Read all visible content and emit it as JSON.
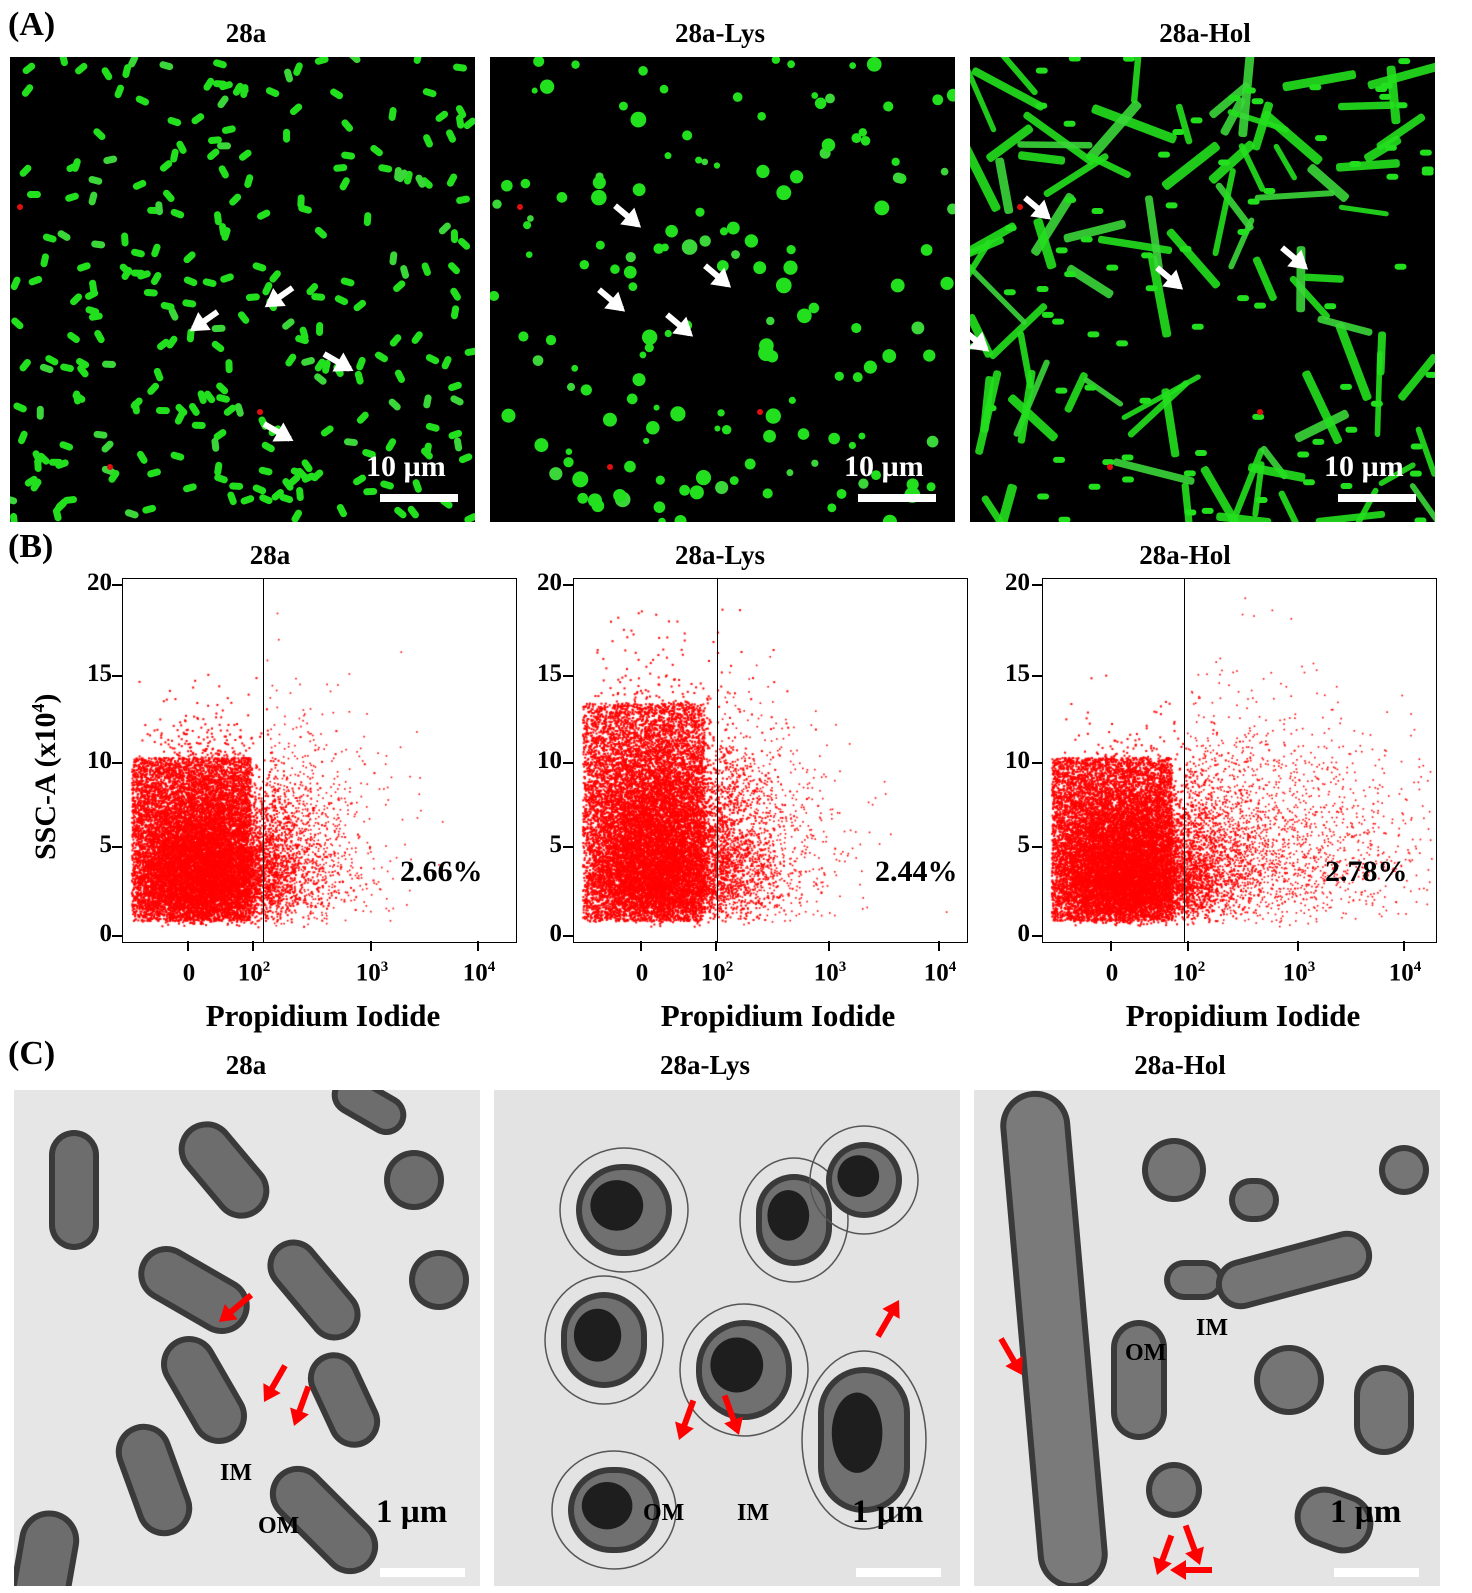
{
  "panel_a": {
    "letter": "(A)",
    "images": [
      {
        "title": "28a",
        "scale_bar": "10 µm"
      },
      {
        "title": "28a-Lys",
        "scale_bar": "10 µm"
      },
      {
        "title": "28a-Hol",
        "scale_bar": "10 µm"
      }
    ]
  },
  "panel_b": {
    "letter": "(B)",
    "y_label": "SSC-A (x10",
    "y_label_exp": "4",
    "y_label_close": ")",
    "x_label": "Propidium Iodide",
    "y_ticks": [
      "20",
      "15",
      "10",
      "5",
      "0"
    ],
    "x_ticks": [
      {
        "base": "0",
        "exp": ""
      },
      {
        "base": "10",
        "exp": "2"
      },
      {
        "base": "10",
        "exp": "3"
      },
      {
        "base": "10",
        "exp": "4"
      }
    ],
    "plots": [
      {
        "title": "28a",
        "percent": "2.66%"
      },
      {
        "title": "28a-Lys",
        "percent": "2.44%"
      },
      {
        "title": "28a-Hol",
        "percent": "2.78%"
      }
    ]
  },
  "panel_c": {
    "letter": "(C)",
    "images": [
      {
        "title": "28a",
        "scale_bar": "1 µm",
        "labels": [
          "IM",
          "OM"
        ]
      },
      {
        "title": "28a-Lys",
        "scale_bar": "1 µm",
        "labels": [
          "OM",
          "IM"
        ]
      },
      {
        "title": "28a-Hol",
        "scale_bar": "1 µm",
        "labels": [
          "OM",
          "IM"
        ]
      }
    ]
  },
  "chart_data": [
    {
      "type": "scatter",
      "title": "28a",
      "xlabel": "Propidium Iodide",
      "ylabel": "SSC-A (x10^4)",
      "x_scale": "biexponential",
      "x_ticks": [
        "0",
        "10^2",
        "10^3",
        "10^4"
      ],
      "ylim": [
        0,
        20
      ],
      "gate_x": 120,
      "gate_percent_right": 2.66,
      "series": [
        {
          "name": "",
          "color": "#ff0000"
        }
      ]
    },
    {
      "type": "scatter",
      "title": "28a-Lys",
      "xlabel": "Propidium Iodide",
      "ylabel": "SSC-A (x10^4)",
      "x_scale": "biexponential",
      "x_ticks": [
        "0",
        "10^2",
        "10^3",
        "10^4"
      ],
      "ylim": [
        0,
        20
      ],
      "gate_x": 120,
      "gate_percent_right": 2.44,
      "series": [
        {
          "name": "",
          "color": "#ff0000"
        }
      ]
    },
    {
      "type": "scatter",
      "title": "28a-Hol",
      "xlabel": "Propidium Iodide",
      "ylabel": "SSC-A (x10^4)",
      "x_scale": "biexponential",
      "x_ticks": [
        "0",
        "10^2",
        "10^3",
        "10^4"
      ],
      "ylim": [
        0,
        20
      ],
      "gate_x": 120,
      "gate_percent_right": 2.78,
      "series": [
        {
          "name": "",
          "color": "#ff0000"
        }
      ]
    }
  ]
}
